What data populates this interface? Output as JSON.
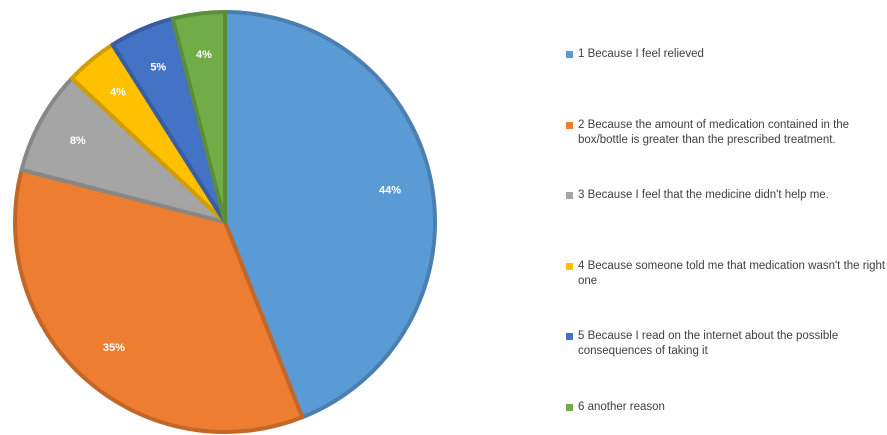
{
  "chart_data": {
    "type": "pie",
    "title": "",
    "slices": [
      {
        "label": "1 Because I feel relieved",
        "value": 44,
        "value_label": "44%",
        "color": "#5B9BD5"
      },
      {
        "label": "2 Because the amount of medication contained in the box/bottle is greater than the prescribed treatment.",
        "value": 35,
        "value_label": "35%",
        "color": "#ED7D31"
      },
      {
        "label": "3 Because I feel that the medicine didn't help me.",
        "value": 8,
        "value_label": "8%",
        "color": "#A5A5A5"
      },
      {
        "label": "4 Because someone told me that medication wasn't the right one",
        "value": 4,
        "value_label": "4%",
        "color": "#FFC000"
      },
      {
        "label": "5 Because I read on the internet about the possible consequences of taking it",
        "value": 5,
        "value_label": "5%",
        "color": "#4472C4"
      },
      {
        "label": "6 another reason",
        "value": 4,
        "value_label": "4%",
        "color": "#70AD47"
      }
    ],
    "legend_position": "right"
  }
}
